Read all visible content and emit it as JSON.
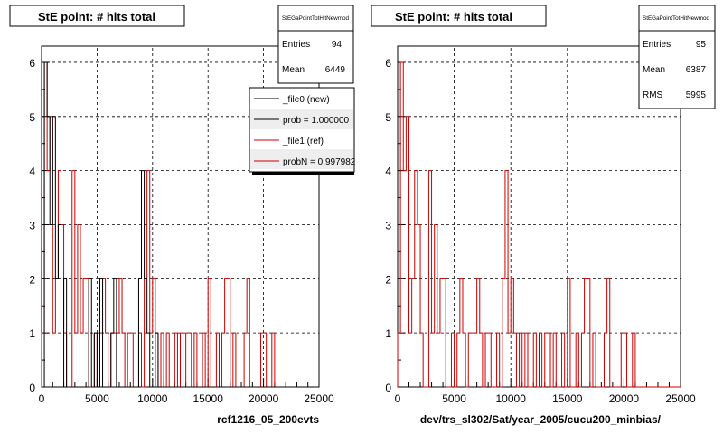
{
  "footer_text": "",
  "colors": {
    "new": "#000000",
    "ref": "#cc0000",
    "grid": "#000000",
    "frame": "#000000"
  },
  "chart_data": [
    {
      "type": "histogram",
      "title": "StE point: # hits total",
      "xlabel": "rcf1216_05_200evts",
      "ylabel": "",
      "xlim": [
        0,
        25000
      ],
      "ylim": [
        0,
        6.3
      ],
      "xticks": [
        "0",
        "5000",
        "10000",
        "15000",
        "20000",
        "25000"
      ],
      "yticks": [
        "0",
        "1",
        "2",
        "3",
        "4",
        "5",
        "6"
      ],
      "grid": true,
      "stats": {
        "name": "StEGaPointTotHitNewmod",
        "entries_label": "Entries",
        "entries": "94",
        "mean_label": "Mean",
        "mean": "6449"
      },
      "legend": {
        "placement": "top-right",
        "entries": [
          "_file0 (new)",
          "prob = 1.000000",
          "_file1 (ref)",
          "probN = 0.997982"
        ]
      },
      "bin_width": 250,
      "series": [
        {
          "name": "_file0 (new)",
          "color": "#000000",
          "values": [
            0,
            6,
            5,
            3,
            5,
            2,
            3,
            0,
            2,
            0,
            0,
            0,
            0,
            0,
            0,
            0,
            0,
            2,
            0,
            1,
            0,
            2,
            0,
            0,
            0,
            1,
            2,
            0,
            0,
            0,
            0,
            0,
            0,
            0,
            0,
            2,
            4,
            2,
            1,
            0,
            0,
            1,
            0,
            0,
            0,
            0,
            0,
            0,
            0,
            0,
            0,
            0,
            0,
            0,
            0,
            0,
            0,
            0,
            0,
            0,
            0,
            0,
            0,
            0,
            0,
            0,
            0,
            0,
            0,
            0,
            0,
            0,
            0,
            0,
            0,
            0,
            0,
            0,
            0,
            0,
            0,
            0,
            0,
            0,
            0,
            0,
            0,
            0,
            0,
            0,
            0,
            0,
            0,
            0,
            0,
            0,
            0,
            0,
            0,
            0
          ]
        },
        {
          "name": "_file1 (ref)",
          "color": "#cc0000",
          "values": [
            1,
            6,
            4,
            5,
            1,
            2,
            4,
            3,
            1,
            0,
            0,
            4,
            1,
            3,
            1,
            2,
            2,
            0,
            0,
            1,
            0,
            1,
            2,
            1,
            0,
            1,
            1,
            1,
            2,
            1,
            0,
            1,
            1,
            0,
            0,
            1,
            0,
            2,
            4,
            1,
            2,
            1,
            0,
            1,
            0,
            1,
            0,
            0,
            1,
            0,
            1,
            0,
            1,
            1,
            0,
            1,
            0,
            0,
            1,
            0,
            2,
            0,
            0,
            1,
            0,
            1,
            2,
            2,
            0,
            1,
            0,
            0,
            0,
            1,
            2,
            0,
            0,
            0,
            0,
            1,
            1,
            0,
            0,
            1,
            0,
            0,
            0,
            0,
            0,
            0,
            0,
            0,
            0,
            0,
            0,
            0,
            0,
            0,
            0,
            0
          ]
        }
      ]
    },
    {
      "type": "histogram",
      "title": "StE point: # hits total",
      "xlabel": "dev/trs_sl302/Sat/year_2005/cucu200_minbias/",
      "ylabel": "",
      "xlim": [
        0,
        25000
      ],
      "ylim": [
        0,
        6.3
      ],
      "xticks": [
        "0",
        "5000",
        "10000",
        "15000",
        "20000",
        "25000"
      ],
      "yticks": [
        "0",
        "1",
        "2",
        "3",
        "4",
        "5",
        "6"
      ],
      "grid": true,
      "stats": {
        "name": "StEGaPointTotHitNewmod",
        "entries_label": "Entries",
        "entries": "95",
        "mean_label": "Mean",
        "mean": "6387",
        "rms_label": "RMS",
        "rms": "5995"
      },
      "bin_width": 250,
      "series": [
        {
          "name": "",
          "color": "#cc0000",
          "values": [
            1,
            6,
            4,
            5,
            1,
            2,
            4,
            3,
            1,
            0,
            0,
            4,
            1,
            3,
            1,
            2,
            2,
            0,
            0,
            1,
            0,
            1,
            2,
            1,
            0,
            1,
            1,
            1,
            2,
            1,
            0,
            1,
            1,
            0,
            0,
            1,
            0,
            2,
            4,
            1,
            2,
            1,
            0,
            1,
            0,
            1,
            0,
            0,
            1,
            0,
            1,
            0,
            1,
            1,
            0,
            1,
            0,
            0,
            1,
            0,
            2,
            0,
            0,
            1,
            0,
            1,
            2,
            2,
            0,
            1,
            0,
            0,
            0,
            1,
            2,
            0,
            0,
            0,
            0,
            1,
            1,
            0,
            0,
            1,
            0,
            0,
            0,
            0,
            0,
            0,
            0,
            0,
            0,
            0,
            0,
            0,
            0,
            0,
            0,
            0
          ]
        }
      ]
    }
  ]
}
